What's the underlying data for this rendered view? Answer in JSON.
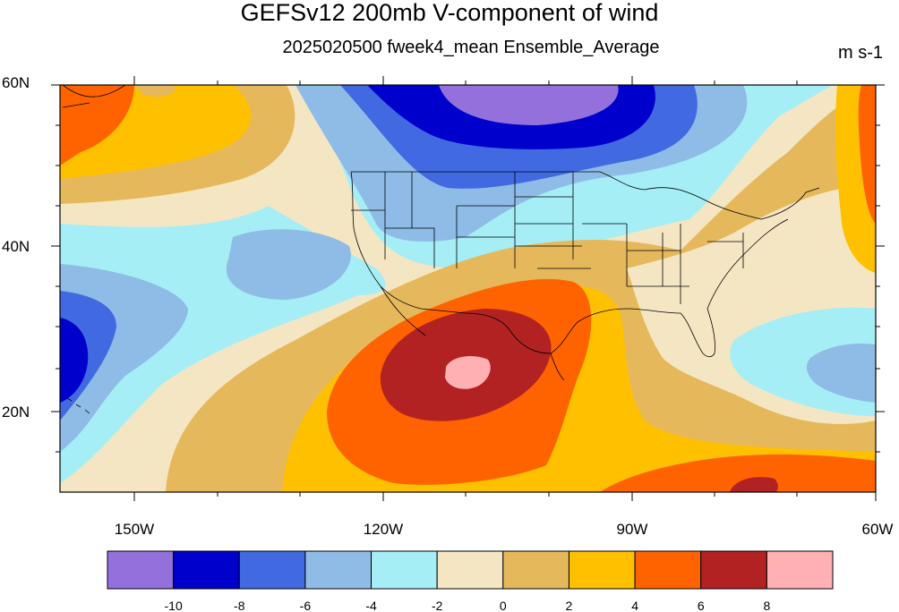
{
  "title": "GEFSv12 200mb V-component of wind",
  "subtitle": "2025020500 fweek4_mean Ensemble_Average",
  "units": "m s-1",
  "map": {
    "lat_labels": [
      "60N",
      "40N",
      "20N"
    ],
    "lon_labels": [
      "150W",
      "120W",
      "90W",
      "60W"
    ]
  },
  "colorbar": {
    "colors": [
      "#9370DB",
      "#0000CD",
      "#4169E1",
      "#8FBCE6",
      "#A5EEF5",
      "#F5E6C3",
      "#E6B85C",
      "#FFC000",
      "#FF6300",
      "#B22222",
      "#FFB0B3"
    ],
    "labels": [
      "-10",
      "-8",
      "-6",
      "-4",
      "-2",
      "0",
      "2",
      "4",
      "6",
      "8"
    ]
  }
}
